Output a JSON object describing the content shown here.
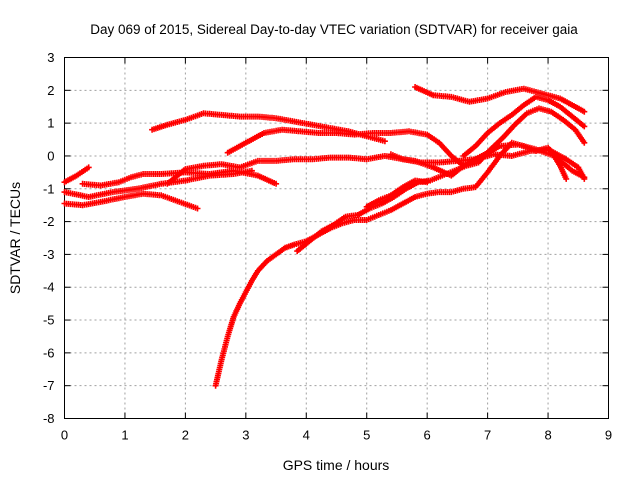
{
  "chart_data": {
    "type": "scatter",
    "title": "Day 069 of 2015, Sidereal Day-to-day VTEC variation (SDTVAR) for receiver gaia",
    "xlabel": "GPS time / hours",
    "ylabel": "SDTVAR / TECUs",
    "xlim": [
      0,
      9
    ],
    "ylim": [
      -8,
      3
    ],
    "xticks": [
      "0",
      "1",
      "2",
      "3",
      "4",
      "5",
      "6",
      "7",
      "8",
      "9"
    ],
    "yticks": [
      "3",
      "2",
      "1",
      "0",
      "-1",
      "-2",
      "-3",
      "-4",
      "-5",
      "-6",
      "-7",
      "-8"
    ],
    "grid": true,
    "marker": "plus",
    "color": "#ff0000",
    "series": [
      {
        "values": [
          [
            0.0,
            -0.8
          ],
          [
            0.2,
            -0.6
          ],
          [
            0.4,
            -0.35
          ]
        ]
      },
      {
        "values": [
          [
            0.0,
            -1.45
          ],
          [
            0.3,
            -1.5
          ],
          [
            0.6,
            -1.4
          ],
          [
            1.0,
            -1.25
          ],
          [
            1.3,
            -1.15
          ],
          [
            1.6,
            -1.2
          ],
          [
            1.9,
            -1.4
          ],
          [
            2.2,
            -1.6
          ]
        ]
      },
      {
        "values": [
          [
            0.0,
            -1.1
          ],
          [
            0.4,
            -1.25
          ],
          [
            0.8,
            -1.1
          ],
          [
            1.2,
            -1.0
          ],
          [
            1.6,
            -0.85
          ],
          [
            2.0,
            -0.75
          ],
          [
            2.4,
            -0.6
          ],
          [
            2.8,
            -0.55
          ],
          [
            3.1,
            -0.45
          ]
        ]
      },
      {
        "values": [
          [
            0.3,
            -0.85
          ],
          [
            0.6,
            -0.9
          ],
          [
            0.9,
            -0.8
          ],
          [
            1.1,
            -0.65
          ],
          [
            1.3,
            -0.55
          ],
          [
            1.6,
            -0.55
          ],
          [
            2.0,
            -0.5
          ],
          [
            2.4,
            -0.55
          ],
          [
            2.8,
            -0.45
          ],
          [
            3.2,
            -0.6
          ],
          [
            3.5,
            -0.85
          ]
        ]
      },
      {
        "values": [
          [
            1.45,
            0.8
          ],
          [
            1.7,
            0.95
          ],
          [
            2.0,
            1.1
          ],
          [
            2.3,
            1.3
          ],
          [
            2.6,
            1.25
          ],
          [
            2.9,
            1.2
          ],
          [
            3.2,
            1.2
          ],
          [
            3.5,
            1.15
          ],
          [
            3.8,
            1.05
          ],
          [
            4.1,
            0.95
          ],
          [
            4.4,
            0.85
          ],
          [
            4.7,
            0.75
          ],
          [
            5.0,
            0.6
          ],
          [
            5.3,
            0.45
          ]
        ]
      },
      {
        "values": [
          [
            2.7,
            0.1
          ],
          [
            3.0,
            0.4
          ],
          [
            3.3,
            0.7
          ],
          [
            3.6,
            0.8
          ],
          [
            3.9,
            0.75
          ],
          [
            4.2,
            0.7
          ],
          [
            4.5,
            0.7
          ],
          [
            4.8,
            0.65
          ],
          [
            5.1,
            0.7
          ],
          [
            5.4,
            0.7
          ],
          [
            5.7,
            0.75
          ],
          [
            6.0,
            0.65
          ],
          [
            6.2,
            0.4
          ],
          [
            6.4,
            0.0
          ],
          [
            6.6,
            -0.3
          ]
        ]
      },
      {
        "values": [
          [
            1.7,
            -0.85
          ],
          [
            2.0,
            -0.4
          ],
          [
            2.3,
            -0.3
          ],
          [
            2.6,
            -0.25
          ],
          [
            2.9,
            -0.35
          ],
          [
            3.2,
            -0.15
          ],
          [
            3.5,
            -0.15
          ],
          [
            3.8,
            -0.1
          ],
          [
            4.1,
            -0.1
          ],
          [
            4.4,
            -0.05
          ],
          [
            4.7,
            -0.05
          ],
          [
            5.0,
            -0.1
          ],
          [
            5.3,
            0.0
          ],
          [
            5.6,
            -0.1
          ],
          [
            5.9,
            -0.2
          ],
          [
            6.2,
            -0.2
          ],
          [
            6.5,
            -0.15
          ],
          [
            6.8,
            -0.1
          ],
          [
            7.1,
            0.05
          ],
          [
            7.4,
            0.0
          ],
          [
            7.7,
            0.15
          ],
          [
            8.0,
            0.2
          ],
          [
            8.3,
            -0.1
          ],
          [
            8.5,
            -0.35
          ],
          [
            8.6,
            -0.7
          ]
        ]
      },
      {
        "values": [
          [
            5.4,
            0.05
          ],
          [
            5.6,
            -0.1
          ],
          [
            5.8,
            -0.15
          ],
          [
            6.1,
            -0.35
          ],
          [
            6.4,
            -0.6
          ],
          [
            6.6,
            -0.3
          ],
          [
            6.9,
            0.0
          ],
          [
            7.2,
            0.3
          ],
          [
            7.5,
            0.35
          ],
          [
            7.8,
            0.2
          ],
          [
            8.1,
            0.0
          ],
          [
            8.2,
            -0.3
          ],
          [
            8.3,
            -0.7
          ]
        ]
      },
      {
        "values": [
          [
            5.8,
            2.1
          ],
          [
            6.1,
            1.85
          ],
          [
            6.4,
            1.8
          ],
          [
            6.7,
            1.65
          ],
          [
            7.0,
            1.75
          ],
          [
            7.3,
            1.95
          ],
          [
            7.6,
            2.05
          ],
          [
            7.9,
            1.9
          ],
          [
            8.2,
            1.75
          ],
          [
            8.4,
            1.55
          ],
          [
            8.6,
            1.35
          ]
        ]
      },
      {
        "values": [
          [
            2.5,
            -7.0
          ],
          [
            2.6,
            -6.2
          ],
          [
            2.7,
            -5.5
          ],
          [
            2.8,
            -4.9
          ],
          [
            2.9,
            -4.5
          ],
          [
            3.0,
            -4.15
          ],
          [
            3.1,
            -3.8
          ],
          [
            3.2,
            -3.5
          ],
          [
            3.35,
            -3.2
          ],
          [
            3.5,
            -3.0
          ],
          [
            3.65,
            -2.8
          ],
          [
            3.8,
            -2.7
          ],
          [
            4.0,
            -2.6
          ],
          [
            4.2,
            -2.4
          ],
          [
            4.4,
            -2.2
          ],
          [
            4.6,
            -2.05
          ],
          [
            4.8,
            -1.95
          ],
          [
            5.0,
            -1.95
          ],
          [
            5.2,
            -1.8
          ],
          [
            5.4,
            -1.65
          ],
          [
            5.6,
            -1.45
          ],
          [
            5.8,
            -1.25
          ],
          [
            6.0,
            -1.15
          ],
          [
            6.2,
            -1.1
          ],
          [
            6.4,
            -1.1
          ],
          [
            6.6,
            -1.0
          ],
          [
            6.8,
            -0.95
          ],
          [
            7.0,
            -0.5
          ],
          [
            7.2,
            0.0
          ],
          [
            7.4,
            0.4
          ],
          [
            7.6,
            0.3
          ],
          [
            7.8,
            0.15
          ],
          [
            8.0,
            0.25
          ],
          [
            8.2,
            -0.15
          ],
          [
            8.4,
            -0.45
          ],
          [
            8.6,
            -0.65
          ]
        ]
      },
      {
        "values": [
          [
            3.85,
            -2.9
          ],
          [
            4.05,
            -2.6
          ],
          [
            4.25,
            -2.3
          ],
          [
            4.45,
            -2.1
          ],
          [
            4.65,
            -1.85
          ],
          [
            4.85,
            -1.8
          ],
          [
            5.05,
            -1.6
          ],
          [
            5.25,
            -1.45
          ],
          [
            5.45,
            -1.25
          ],
          [
            5.65,
            -1.0
          ],
          [
            5.85,
            -0.8
          ],
          [
            6.05,
            -0.75
          ],
          [
            6.25,
            -0.6
          ],
          [
            6.45,
            -0.45
          ],
          [
            6.65,
            -0.3
          ],
          [
            6.85,
            -0.2
          ],
          [
            7.05,
            0.2
          ],
          [
            7.25,
            0.55
          ],
          [
            7.45,
            0.95
          ],
          [
            7.65,
            1.3
          ],
          [
            7.85,
            1.45
          ],
          [
            8.05,
            1.35
          ],
          [
            8.25,
            1.1
          ],
          [
            8.45,
            0.8
          ],
          [
            8.6,
            0.4
          ]
        ]
      },
      {
        "values": [
          [
            6.6,
            0.0
          ],
          [
            6.8,
            0.3
          ],
          [
            7.0,
            0.7
          ],
          [
            7.2,
            1.0
          ],
          [
            7.4,
            1.25
          ],
          [
            7.6,
            1.55
          ],
          [
            7.8,
            1.8
          ],
          [
            8.0,
            1.7
          ],
          [
            8.2,
            1.5
          ],
          [
            8.4,
            1.2
          ],
          [
            8.6,
            0.9
          ]
        ]
      },
      {
        "values": [
          [
            5.0,
            -1.55
          ],
          [
            5.2,
            -1.35
          ],
          [
            5.4,
            -1.2
          ],
          [
            5.6,
            -0.95
          ],
          [
            5.8,
            -0.75
          ],
          [
            6.0,
            -0.8
          ]
        ]
      }
    ]
  }
}
